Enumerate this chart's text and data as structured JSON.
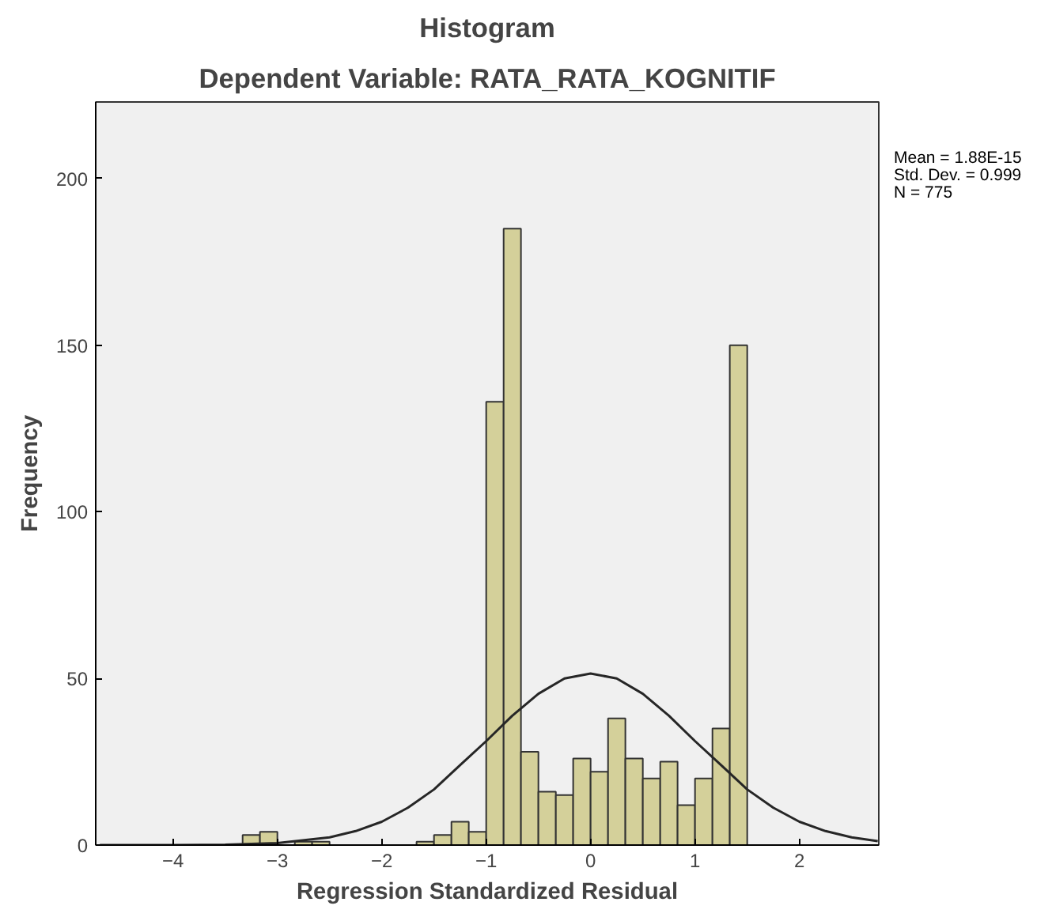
{
  "chart_data": {
    "type": "histogram",
    "title": "Histogram",
    "subtitle": "Dependent Variable: RATA_RATA_KOGNITIF",
    "xlabel": "Regression Standardized Residual",
    "ylabel": "Frequency",
    "bins": [
      -3.333,
      -3.167,
      -3.0,
      -2.833,
      -2.667,
      -2.5,
      -2.333,
      -2.167,
      -2.0,
      -1.833,
      -1.667,
      -1.5,
      -1.333,
      -1.167,
      -1.0,
      -0.833,
      -0.667,
      -0.5,
      -0.333,
      -0.167,
      0.0,
      0.167,
      0.333,
      0.5,
      0.667,
      0.833,
      1.0,
      1.167,
      1.333,
      1.5
    ],
    "values": [
      3,
      4,
      0,
      1,
      1,
      0,
      0,
      0,
      0,
      0,
      1,
      3,
      7,
      4,
      133,
      185,
      28,
      16,
      15,
      26,
      22,
      38,
      26,
      20,
      25,
      12,
      20,
      35,
      150
    ],
    "color": "#d4d09a",
    "series": [
      {
        "type": "line",
        "color": "#262626",
        "x": [
          -4.7,
          -4.0,
          -3.5,
          -3.0,
          -2.5,
          -2.25,
          -2.0,
          -1.75,
          -1.5,
          -1.25,
          -1.0,
          -0.75,
          -0.5,
          -0.25,
          0.0,
          0.25,
          0.5,
          0.75,
          1.0,
          1.25,
          1.5,
          1.75,
          2.0,
          2.25,
          2.5,
          2.75
        ],
        "values": [
          0,
          0,
          0.1,
          0.6,
          2.3,
          4.2,
          7.0,
          11.2,
          16.7,
          24.0,
          31.2,
          38.8,
          45.4,
          50.0,
          51.5,
          50.0,
          45.4,
          38.8,
          31.2,
          24.0,
          16.7,
          11.2,
          7.0,
          4.2,
          2.3,
          1.2
        ]
      }
    ],
    "xlim": [
      -4.74,
      2.76
    ],
    "ylim": [
      0,
      223
    ],
    "xticks": [
      -4,
      -3,
      -2,
      -1,
      0,
      1,
      2
    ],
    "yticks": [
      0,
      50,
      100,
      150,
      200
    ],
    "annotations": [
      "Mean = 1.88E-15\nStd. Dev. = 0.999\nN = 775"
    ],
    "grid": false
  }
}
